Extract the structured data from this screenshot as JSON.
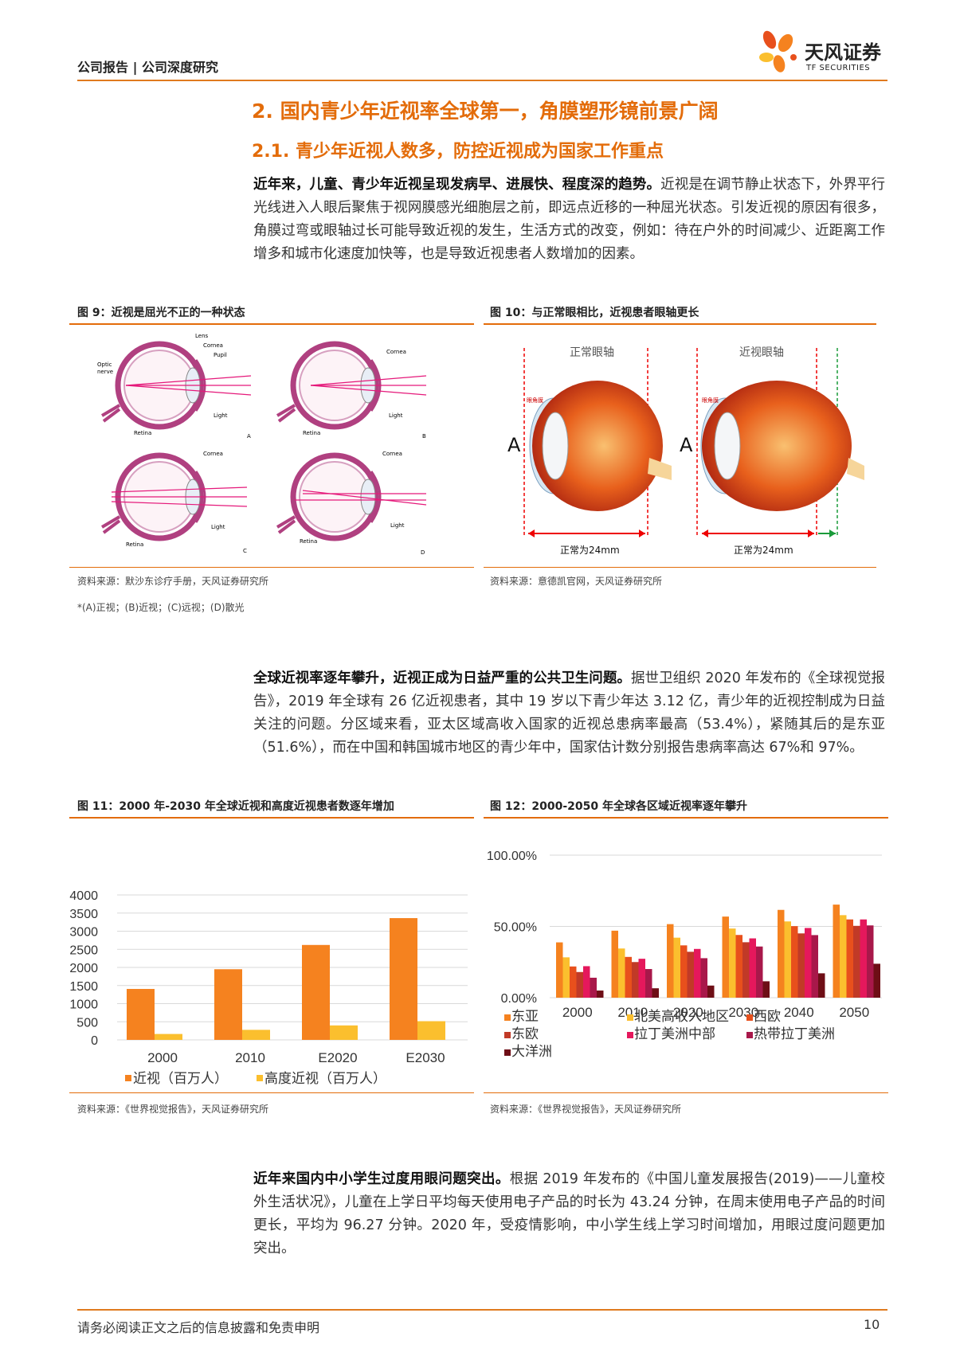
{
  "header": {
    "left": "公司报告 | 公司深度研究",
    "logo_cn": "天风证券",
    "logo_en": "TF SECURITIES"
  },
  "section": {
    "h1": "2. 国内青少年近视率全球第一，角膜塑形镜前景广阔",
    "h2": "2.1. 青少年近视人数多，防控近视成为国家工作重点"
  },
  "para1": {
    "bold": "近年来，儿童、青少年近视呈现发病早、进展快、程度深的趋势。",
    "text": "近视是在调节静止状态下，外界平行光线进入人眼后聚焦于视网膜感光细胞层之前，即远点近移的一种屈光状态。引发近视的原因有很多，角膜过弯或眼轴过长可能导致近视的发生，生活方式的改变，例如：待在户外的时间减少、近距离工作增多和城市化速度加快等，也是导致近视患者人数增加的因素。"
  },
  "fig9": {
    "title": "图 9：近视是屈光不正的一种状态",
    "labels": {
      "lens": "Lens",
      "cornea": "Cornea",
      "pupil": "Pupil",
      "optic_nerve_1": "Optic",
      "optic_nerve_2": "nerve",
      "retina": "Retina",
      "light": "Light",
      "a": "A",
      "b": "B",
      "c": "C",
      "d": "D"
    },
    "source": "资料来源：默沙东诊疗手册，天风证券研究所",
    "note": "*(A)正视；(B)近视；(C)远视；(D)散光"
  },
  "fig10": {
    "title": "图 10：与正常眼相比，近视患者眼轴更长",
    "normal_label": "正常眼轴",
    "myopia_label": "近视眼轴",
    "letter_a": "A",
    "small_tag": "眼角膜",
    "measure": "正常为24mm",
    "source": "资料来源：意德凯官网，天风证券研究所"
  },
  "para2": {
    "bold": "全球近视率逐年攀升，近视正成为日益严重的公共卫生问题。",
    "text": "据世卫组织 2020 年发布的《全球视觉报告》，2019 年全球有 26 亿近视患者，其中 19 岁以下青少年达 3.12 亿，青少年的近视控制成为日益关注的问题。分区域来看，亚太区域高收入国家的近视总患病率最高（53.4%），紧随其后的是东亚（51.6%），而在中国和韩国城市地区的青少年中，国家估计数分别报告患病率高达 67%和 97%。"
  },
  "fig11": {
    "title": "图 11：2000 年-2030 年全球近视和高度近视患者数逐年增加",
    "source": "资料来源：《世界视觉报告》，天风证券研究所"
  },
  "fig12": {
    "title": "图 12：2000-2050 年全球各区域近视率逐年攀升",
    "source": "资料来源：《世界视觉报告》，天风证券研究所"
  },
  "chart_data": [
    {
      "type": "bar",
      "categories": [
        "2000",
        "2010",
        "E2020",
        "E2030"
      ],
      "series": [
        {
          "name": "近视（百万人）",
          "values": [
            1406,
            1950,
            2620,
            3361
          ],
          "color": "#f5821f"
        },
        {
          "name": "高度近视（百万人）",
          "values": [
            163,
            277,
            399,
            516
          ],
          "color": "#fbbf2e"
        }
      ],
      "yticks": [
        "0",
        "500",
        "1000",
        "1500",
        "2000",
        "2500",
        "3000",
        "3500",
        "4000"
      ],
      "ylim": [
        0,
        4000
      ],
      "legend": "bottom",
      "grid": true
    },
    {
      "type": "bar",
      "categories": [
        "2000",
        "2010",
        "2020",
        "2030",
        "2040",
        "2050"
      ],
      "series": [
        {
          "name": "东亚",
          "values": [
            38.8,
            47.0,
            51.6,
            56.9,
            61.6,
            65.3
          ],
          "color": "#f5821f"
        },
        {
          "name": "北美高收入地区",
          "values": [
            28.3,
            34.5,
            42.1,
            48.5,
            53.5,
            57.9
          ],
          "color": "#fbbf2e"
        },
        {
          "name": "西欧",
          "values": [
            21.9,
            28.6,
            36.7,
            44.0,
            50.2,
            54.9
          ],
          "color": "#e8501c"
        },
        {
          "name": "东欧",
          "values": [
            18.0,
            25.0,
            32.2,
            38.9,
            45.1,
            50.4
          ],
          "color": "#c13a27"
        },
        {
          "name": "拉丁美洲中部",
          "values": [
            22.1,
            27.3,
            34.2,
            41.6,
            48.9,
            54.9
          ],
          "color": "#e5185c"
        },
        {
          "name": "热带拉丁美洲",
          "values": [
            14.0,
            20.1,
            27.7,
            35.9,
            43.9,
            50.7
          ],
          "color": "#a8184a"
        },
        {
          "name": "大洋洲",
          "values": [
            5.0,
            6.6,
            8.5,
            11.5,
            17.1,
            23.8
          ],
          "color": "#6e0e16"
        }
      ],
      "yticks": [
        "0.00%",
        "50.00%",
        "100.00%"
      ],
      "ylim": [
        0,
        100
      ],
      "legend": "bottom",
      "grid": true
    }
  ],
  "para3": {
    "bold": "近年来国内中小学生过度用眼问题突出。",
    "text": "根据 2019 年发布的《中国儿童发展报告(2019)——儿童校外生活状况》，儿童在上学日平均每天使用电子产品的时长为 43.24 分钟，在周末使用电子产品的时间更长，平均为 96.27 分钟。2020 年，受疫情影响，中小学生线上学习时间增加，用眼过度问题更加突出。"
  },
  "footer": {
    "left": "请务必阅读正文之后的信息披露和免责申明",
    "page": "10"
  }
}
